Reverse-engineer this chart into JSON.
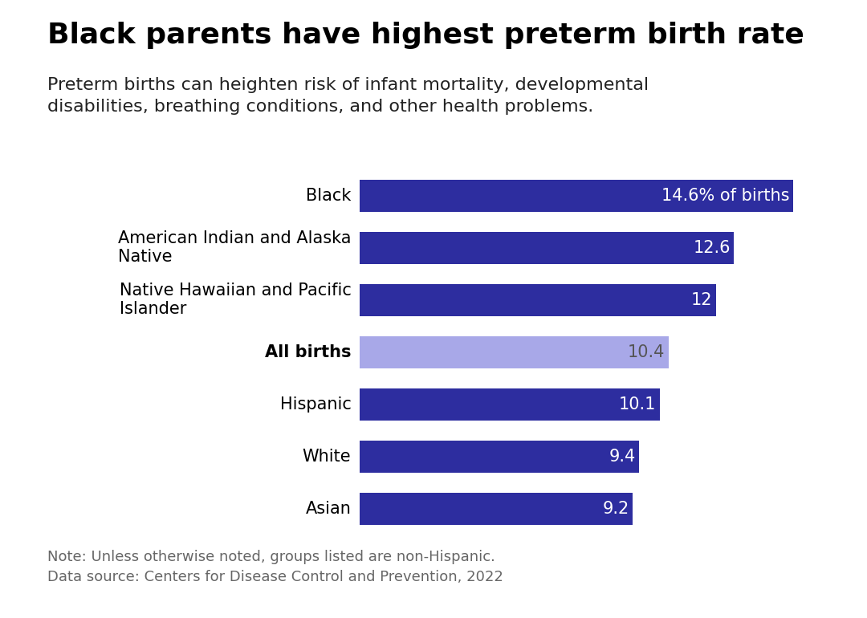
{
  "title": "Black parents have highest preterm birth rate",
  "subtitle": "Preterm births can heighten risk of infant mortality, developmental\ndisabilities, breathing conditions, and other health problems.",
  "categories": [
    "Black",
    "American Indian and Alaska\nNative",
    "Native Hawaiian and Pacific\nIslander",
    "All births",
    "Hispanic",
    "White",
    "Asian"
  ],
  "values": [
    14.6,
    12.6,
    12.0,
    10.4,
    10.1,
    9.4,
    9.2
  ],
  "bar_colors": [
    "#2d2d9f",
    "#2d2d9f",
    "#2d2d9f",
    "#a8a8e8",
    "#2d2d9f",
    "#2d2d9f",
    "#2d2d9f"
  ],
  "bar_labels": [
    "14.6% of births",
    "12.6",
    "12",
    "10.4",
    "10.1",
    "9.4",
    "9.2"
  ],
  "all_births_index": 3,
  "note_line1": "Note: Unless otherwise noted, groups listed are non-Hispanic.",
  "note_line2": "Data source: Centers for Disease Control and Prevention, 2022",
  "xlim": [
    0,
    16.5
  ],
  "background_color": "#ffffff",
  "title_fontsize": 26,
  "subtitle_fontsize": 16,
  "label_fontsize": 15,
  "bar_label_fontsize": 15,
  "note_fontsize": 13
}
